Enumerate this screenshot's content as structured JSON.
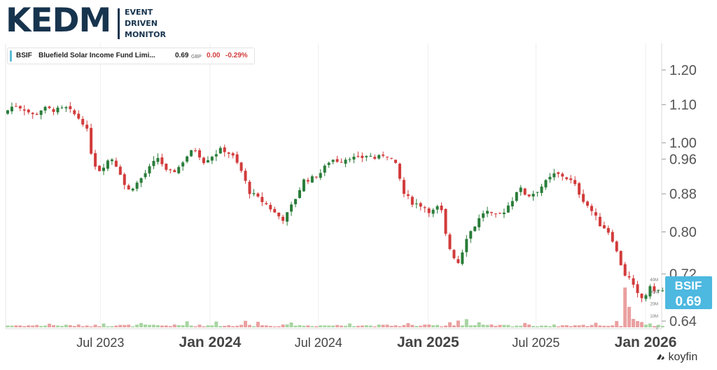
{
  "logo": {
    "main": "KEDM",
    "lines": [
      "EVENT",
      "DRIVEN",
      "MONITOR"
    ]
  },
  "info": {
    "ticker": "BSIF",
    "name": "Bluefield Solar Income Fund Limi...",
    "price": "0.69",
    "currency": "GBP",
    "change": "0.00",
    "change_pct": "-0.29%"
  },
  "price_tag": {
    "ticker": "BSIF",
    "price": "0.69",
    "color": "#4db8e0"
  },
  "brand": "koyfin",
  "colors": {
    "up": "#2a7d3a",
    "down": "#d23b3b",
    "vol_up": "#a8d5a2",
    "vol_down": "#eaa0a0",
    "grid": "#eeeeee"
  },
  "chart_data": {
    "type": "candlestick",
    "y_axis": {
      "ticks": [
        {
          "value": 1.2,
          "label": "1.20"
        },
        {
          "value": 1.1,
          "label": "1.10"
        },
        {
          "value": 1.0,
          "label": "1.00"
        },
        {
          "value": 0.96,
          "label": "0.96"
        },
        {
          "value": 0.88,
          "label": "0.88"
        },
        {
          "value": 0.8,
          "label": "0.80"
        },
        {
          "value": 0.72,
          "label": "0.72"
        },
        {
          "value": 0.64,
          "label": "0.64"
        }
      ],
      "scale": "log",
      "range": [
        0.63,
        1.26
      ]
    },
    "x_axis": {
      "range": [
        "2023-01-23",
        "2026-01-28"
      ],
      "ticks": [
        {
          "date": "2023-07-01",
          "label": "Jul 2023",
          "bold": false
        },
        {
          "date": "2024-01-01",
          "label": "Jan 2024",
          "bold": true
        },
        {
          "date": "2024-07-01",
          "label": "Jul 2024",
          "bold": false
        },
        {
          "date": "2025-01-01",
          "label": "Jan 2025",
          "bold": true
        },
        {
          "date": "2025-07-01",
          "label": "Jul 2025",
          "bold": false
        },
        {
          "date": "2026-01-01",
          "label": "Jan 2026",
          "bold": true
        }
      ]
    },
    "volume_axis": {
      "ticks": [
        "40M",
        "30M",
        "20M",
        "10M",
        "0"
      ],
      "max": 40
    },
    "close_path": [
      [
        "2023-01-23",
        1.075
      ],
      [
        "2023-02-10",
        1.1
      ],
      [
        "2023-02-25",
        1.09
      ],
      [
        "2023-03-15",
        1.07
      ],
      [
        "2023-03-30",
        1.09
      ],
      [
        "2023-04-20",
        1.085
      ],
      [
        "2023-05-08",
        1.09
      ],
      [
        "2023-05-25",
        1.07
      ],
      [
        "2023-06-10",
        1.045
      ],
      [
        "2023-06-20",
        0.97
      ],
      [
        "2023-06-30",
        0.93
      ],
      [
        "2023-07-10",
        0.945
      ],
      [
        "2023-07-22",
        0.965
      ],
      [
        "2023-08-05",
        0.935
      ],
      [
        "2023-08-18",
        0.885
      ],
      [
        "2023-09-05",
        0.905
      ],
      [
        "2023-09-20",
        0.93
      ],
      [
        "2023-10-10",
        0.965
      ],
      [
        "2023-10-25",
        0.925
      ],
      [
        "2023-11-10",
        0.935
      ],
      [
        "2023-11-25",
        0.965
      ],
      [
        "2023-12-10",
        0.985
      ],
      [
        "2023-12-25",
        0.955
      ],
      [
        "2024-01-10",
        0.97
      ],
      [
        "2024-01-25",
        0.985
      ],
      [
        "2024-02-10",
        0.97
      ],
      [
        "2024-02-25",
        0.935
      ],
      [
        "2024-03-10",
        0.885
      ],
      [
        "2024-03-25",
        0.87
      ],
      [
        "2024-04-10",
        0.855
      ],
      [
        "2024-04-25",
        0.835
      ],
      [
        "2024-05-08",
        0.825
      ],
      [
        "2024-05-25",
        0.865
      ],
      [
        "2024-06-10",
        0.91
      ],
      [
        "2024-06-25",
        0.915
      ],
      [
        "2024-07-10",
        0.93
      ],
      [
        "2024-07-25",
        0.96
      ],
      [
        "2024-08-10",
        0.955
      ],
      [
        "2024-08-25",
        0.965
      ],
      [
        "2024-09-10",
        0.96
      ],
      [
        "2024-09-25",
        0.97
      ],
      [
        "2024-10-10",
        0.96
      ],
      [
        "2024-10-25",
        0.975
      ],
      [
        "2024-11-10",
        0.95
      ],
      [
        "2024-11-25",
        0.88
      ],
      [
        "2024-12-10",
        0.86
      ],
      [
        "2024-12-25",
        0.855
      ],
      [
        "2025-01-10",
        0.84
      ],
      [
        "2025-01-25",
        0.855
      ],
      [
        "2025-02-05",
        0.78
      ],
      [
        "2025-02-15",
        0.755
      ],
      [
        "2025-02-25",
        0.74
      ],
      [
        "2025-03-10",
        0.79
      ],
      [
        "2025-03-25",
        0.815
      ],
      [
        "2025-04-10",
        0.845
      ],
      [
        "2025-04-25",
        0.83
      ],
      [
        "2025-05-10",
        0.84
      ],
      [
        "2025-05-25",
        0.865
      ],
      [
        "2025-06-05",
        0.895
      ],
      [
        "2025-06-20",
        0.875
      ],
      [
        "2025-07-05",
        0.885
      ],
      [
        "2025-07-20",
        0.905
      ],
      [
        "2025-08-05",
        0.925
      ],
      [
        "2025-08-20",
        0.92
      ],
      [
        "2025-09-05",
        0.905
      ],
      [
        "2025-09-20",
        0.87
      ],
      [
        "2025-10-05",
        0.845
      ],
      [
        "2025-10-20",
        0.815
      ],
      [
        "2025-11-01",
        0.805
      ],
      [
        "2025-11-10",
        0.785
      ],
      [
        "2025-11-20",
        0.75
      ],
      [
        "2025-11-30",
        0.72
      ],
      [
        "2025-12-10",
        0.71
      ],
      [
        "2025-12-20",
        0.685
      ],
      [
        "2026-01-01",
        0.675
      ],
      [
        "2026-01-10",
        0.695
      ],
      [
        "2026-01-28",
        0.69
      ]
    ],
    "volume_spikes": [
      [
        "2023-04-01",
        3.0
      ],
      [
        "2023-07-01",
        3.2
      ],
      [
        "2023-09-05",
        3.6
      ],
      [
        "2023-11-20",
        5.0
      ],
      [
        "2024-01-05",
        4.8
      ],
      [
        "2024-02-26",
        5.4
      ],
      [
        "2024-03-15",
        4.6
      ],
      [
        "2024-05-10",
        4.0
      ],
      [
        "2024-08-20",
        3.2
      ],
      [
        "2024-11-25",
        3.5
      ],
      [
        "2025-02-05",
        4.2
      ],
      [
        "2025-02-18",
        5.6
      ],
      [
        "2025-03-01",
        6.8
      ],
      [
        "2025-03-25",
        4.2
      ],
      [
        "2025-06-12",
        3.6
      ],
      [
        "2025-10-05",
        3.8
      ],
      [
        "2025-11-12",
        5.2
      ],
      [
        "2025-11-21",
        33.0
      ],
      [
        "2025-11-29",
        17.0
      ],
      [
        "2025-12-05",
        7.0
      ],
      [
        "2025-12-13",
        5.2
      ],
      [
        "2025-12-22",
        4.4
      ],
      [
        "2026-01-06",
        3.2
      ]
    ]
  }
}
